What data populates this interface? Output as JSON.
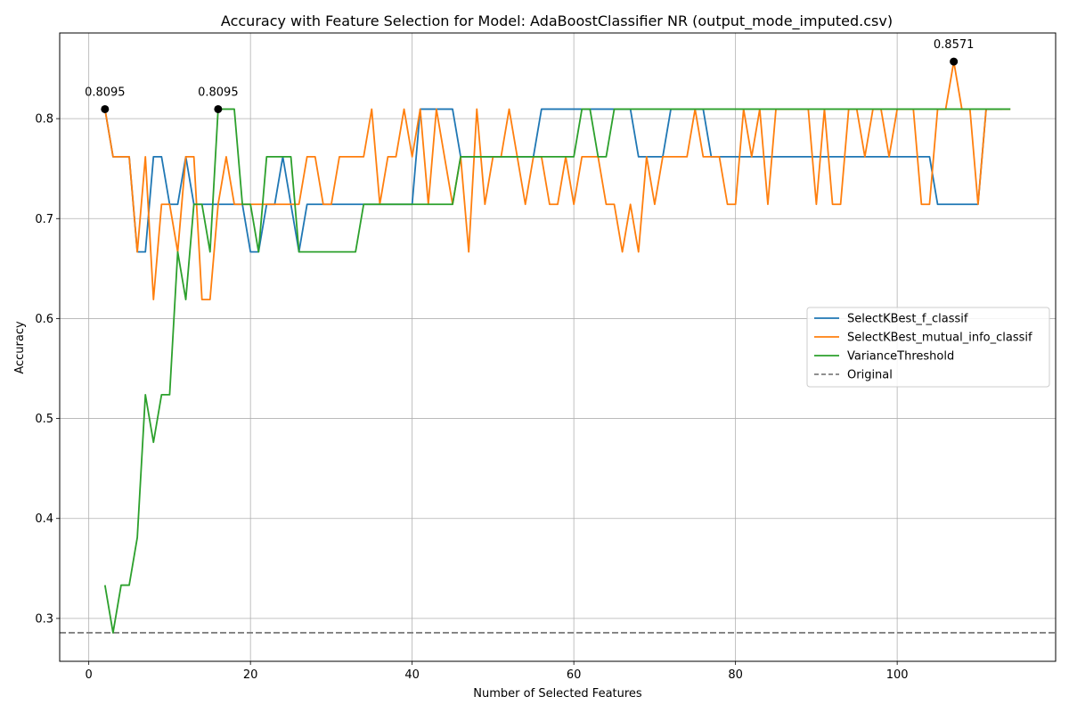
{
  "chart_data": {
    "type": "line",
    "title": "Accuracy with Feature Selection for Model: AdaBoostClassifier NR (output_mode_imputed.csv)",
    "xlabel": "Number of Selected Features",
    "ylabel": "Accuracy",
    "xlim": [
      -3.6,
      119.6
    ],
    "ylim": [
      0.2571,
      0.8857
    ],
    "xticks": [
      0,
      20,
      40,
      60,
      80,
      100
    ],
    "yticks": [
      0.3,
      0.4,
      0.5,
      0.6,
      0.7,
      0.8
    ],
    "xtick_labels": [
      "0",
      "20",
      "40",
      "60",
      "80",
      "100"
    ],
    "ytick_labels": [
      "0.3",
      "0.4",
      "0.5",
      "0.6",
      "0.7",
      "0.8"
    ],
    "grid": true,
    "legend_position": "center-right",
    "x_start": 2,
    "series": [
      {
        "name": "SelectKBest_f_classif",
        "color": "#1f77b4",
        "style": "solid",
        "values": [
          0.8095,
          0.7619,
          0.7619,
          0.7619,
          0.6667,
          0.6667,
          0.7619,
          0.7619,
          0.7143,
          0.7143,
          0.7619,
          0.7143,
          0.7143,
          0.7143,
          0.7143,
          0.7143,
          0.7143,
          0.7143,
          0.6667,
          0.6667,
          0.7143,
          0.7143,
          0.7619,
          0.7143,
          0.6667,
          0.7143,
          0.7143,
          0.7143,
          0.7143,
          0.7143,
          0.7143,
          0.7143,
          0.7143,
          0.7143,
          0.7143,
          0.7143,
          0.7143,
          0.7143,
          0.7143,
          0.8095,
          0.8095,
          0.8095,
          0.8095,
          0.8095,
          0.7619,
          0.7619,
          0.7619,
          0.7619,
          0.7619,
          0.7619,
          0.7619,
          0.7619,
          0.7619,
          0.7619,
          0.8095,
          0.8095,
          0.8095,
          0.8095,
          0.8095,
          0.8095,
          0.8095,
          0.8095,
          0.8095,
          0.8095,
          0.8095,
          0.8095,
          0.7619,
          0.7619,
          0.7619,
          0.7619,
          0.8095,
          0.8095,
          0.8095,
          0.8095,
          0.8095,
          0.7619,
          0.7619,
          0.7619,
          0.7619,
          0.7619,
          0.7619,
          0.7619,
          0.7619,
          0.7619,
          0.7619,
          0.7619,
          0.7619,
          0.7619,
          0.7619,
          0.7619,
          0.7619,
          0.7619,
          0.7619,
          0.7619,
          0.7619,
          0.7619,
          0.7619,
          0.7619,
          0.7619,
          0.7619,
          0.7619,
          0.7619,
          0.7619,
          0.7143,
          0.7143,
          0.7143,
          0.7143,
          0.7143,
          0.7143,
          0.8095,
          0.8095,
          0.8095
        ]
      },
      {
        "name": "SelectKBest_mutual_info_classif",
        "color": "#ff7f0e",
        "style": "solid",
        "values": [
          0.8095,
          0.7619,
          0.7619,
          0.7619,
          0.6667,
          0.7619,
          0.619,
          0.7143,
          0.7143,
          0.6667,
          0.7619,
          0.7619,
          0.619,
          0.619,
          0.7143,
          0.7619,
          0.7143,
          0.7143,
          0.7143,
          0.7143,
          0.7143,
          0.7143,
          0.7143,
          0.7143,
          0.7143,
          0.7619,
          0.7619,
          0.7143,
          0.7143,
          0.7619,
          0.7619,
          0.7619,
          0.7619,
          0.8095,
          0.7143,
          0.7619,
          0.7619,
          0.8095,
          0.7619,
          0.8095,
          0.7143,
          0.8095,
          0.7619,
          0.7143,
          0.7619,
          0.6667,
          0.8095,
          0.7143,
          0.7619,
          0.7619,
          0.8095,
          0.7619,
          0.7143,
          0.7619,
          0.7619,
          0.7143,
          0.7143,
          0.7619,
          0.7143,
          0.7619,
          0.7619,
          0.7619,
          0.7143,
          0.7143,
          0.6667,
          0.7143,
          0.6667,
          0.7619,
          0.7143,
          0.7619,
          0.7619,
          0.7619,
          0.7619,
          0.8095,
          0.7619,
          0.7619,
          0.7619,
          0.7143,
          0.7143,
          0.8095,
          0.7619,
          0.8095,
          0.7143,
          0.8095,
          0.8095,
          0.8095,
          0.8095,
          0.8095,
          0.7143,
          0.8095,
          0.7143,
          0.7143,
          0.8095,
          0.8095,
          0.7619,
          0.8095,
          0.8095,
          0.7619,
          0.8095,
          0.8095,
          0.8095,
          0.7143,
          0.7143,
          0.8095,
          0.8095,
          0.8571,
          0.8095,
          0.8095,
          0.7143,
          0.8095,
          0.8095,
          0.8095,
          0.8095
        ]
      },
      {
        "name": "VarianceThreshold",
        "color": "#2ca02c",
        "style": "solid",
        "values": [
          0.3333,
          0.2857,
          0.3333,
          0.3333,
          0.381,
          0.5238,
          0.4762,
          0.5238,
          0.5238,
          0.6667,
          0.619,
          0.7143,
          0.7143,
          0.6667,
          0.8095,
          0.8095,
          0.8095,
          0.7143,
          0.7143,
          0.6667,
          0.7619,
          0.7619,
          0.7619,
          0.7619,
          0.6667,
          0.6667,
          0.6667,
          0.6667,
          0.6667,
          0.6667,
          0.6667,
          0.6667,
          0.7143,
          0.7143,
          0.7143,
          0.7143,
          0.7143,
          0.7143,
          0.7143,
          0.7143,
          0.7143,
          0.7143,
          0.7143,
          0.7143,
          0.7619,
          0.7619,
          0.7619,
          0.7619,
          0.7619,
          0.7619,
          0.7619,
          0.7619,
          0.7619,
          0.7619,
          0.7619,
          0.7619,
          0.7619,
          0.7619,
          0.7619,
          0.8095,
          0.8095,
          0.7619,
          0.7619,
          0.8095,
          0.8095,
          0.8095,
          0.8095,
          0.8095,
          0.8095,
          0.8095,
          0.8095,
          0.8095,
          0.8095,
          0.8095,
          0.8095,
          0.8095,
          0.8095,
          0.8095,
          0.8095,
          0.8095,
          0.8095,
          0.8095,
          0.8095,
          0.8095,
          0.8095,
          0.8095,
          0.8095,
          0.8095,
          0.8095,
          0.8095,
          0.8095,
          0.8095,
          0.8095,
          0.8095,
          0.8095,
          0.8095,
          0.8095,
          0.8095,
          0.8095,
          0.8095,
          0.8095,
          0.8095,
          0.8095,
          0.8095,
          0.8095,
          0.8095,
          0.8095,
          0.8095,
          0.8095,
          0.8095,
          0.8095,
          0.8095,
          0.8095
        ]
      }
    ],
    "original": {
      "name": "Original",
      "value": 0.2857,
      "color": "#808080",
      "style": "dashed"
    },
    "annotations": [
      {
        "x": 2,
        "y": 0.8095,
        "label": "0.8095"
      },
      {
        "x": 16,
        "y": 0.8095,
        "label": "0.8095"
      },
      {
        "x": 107,
        "y": 0.8571,
        "label": "0.8571"
      }
    ]
  }
}
